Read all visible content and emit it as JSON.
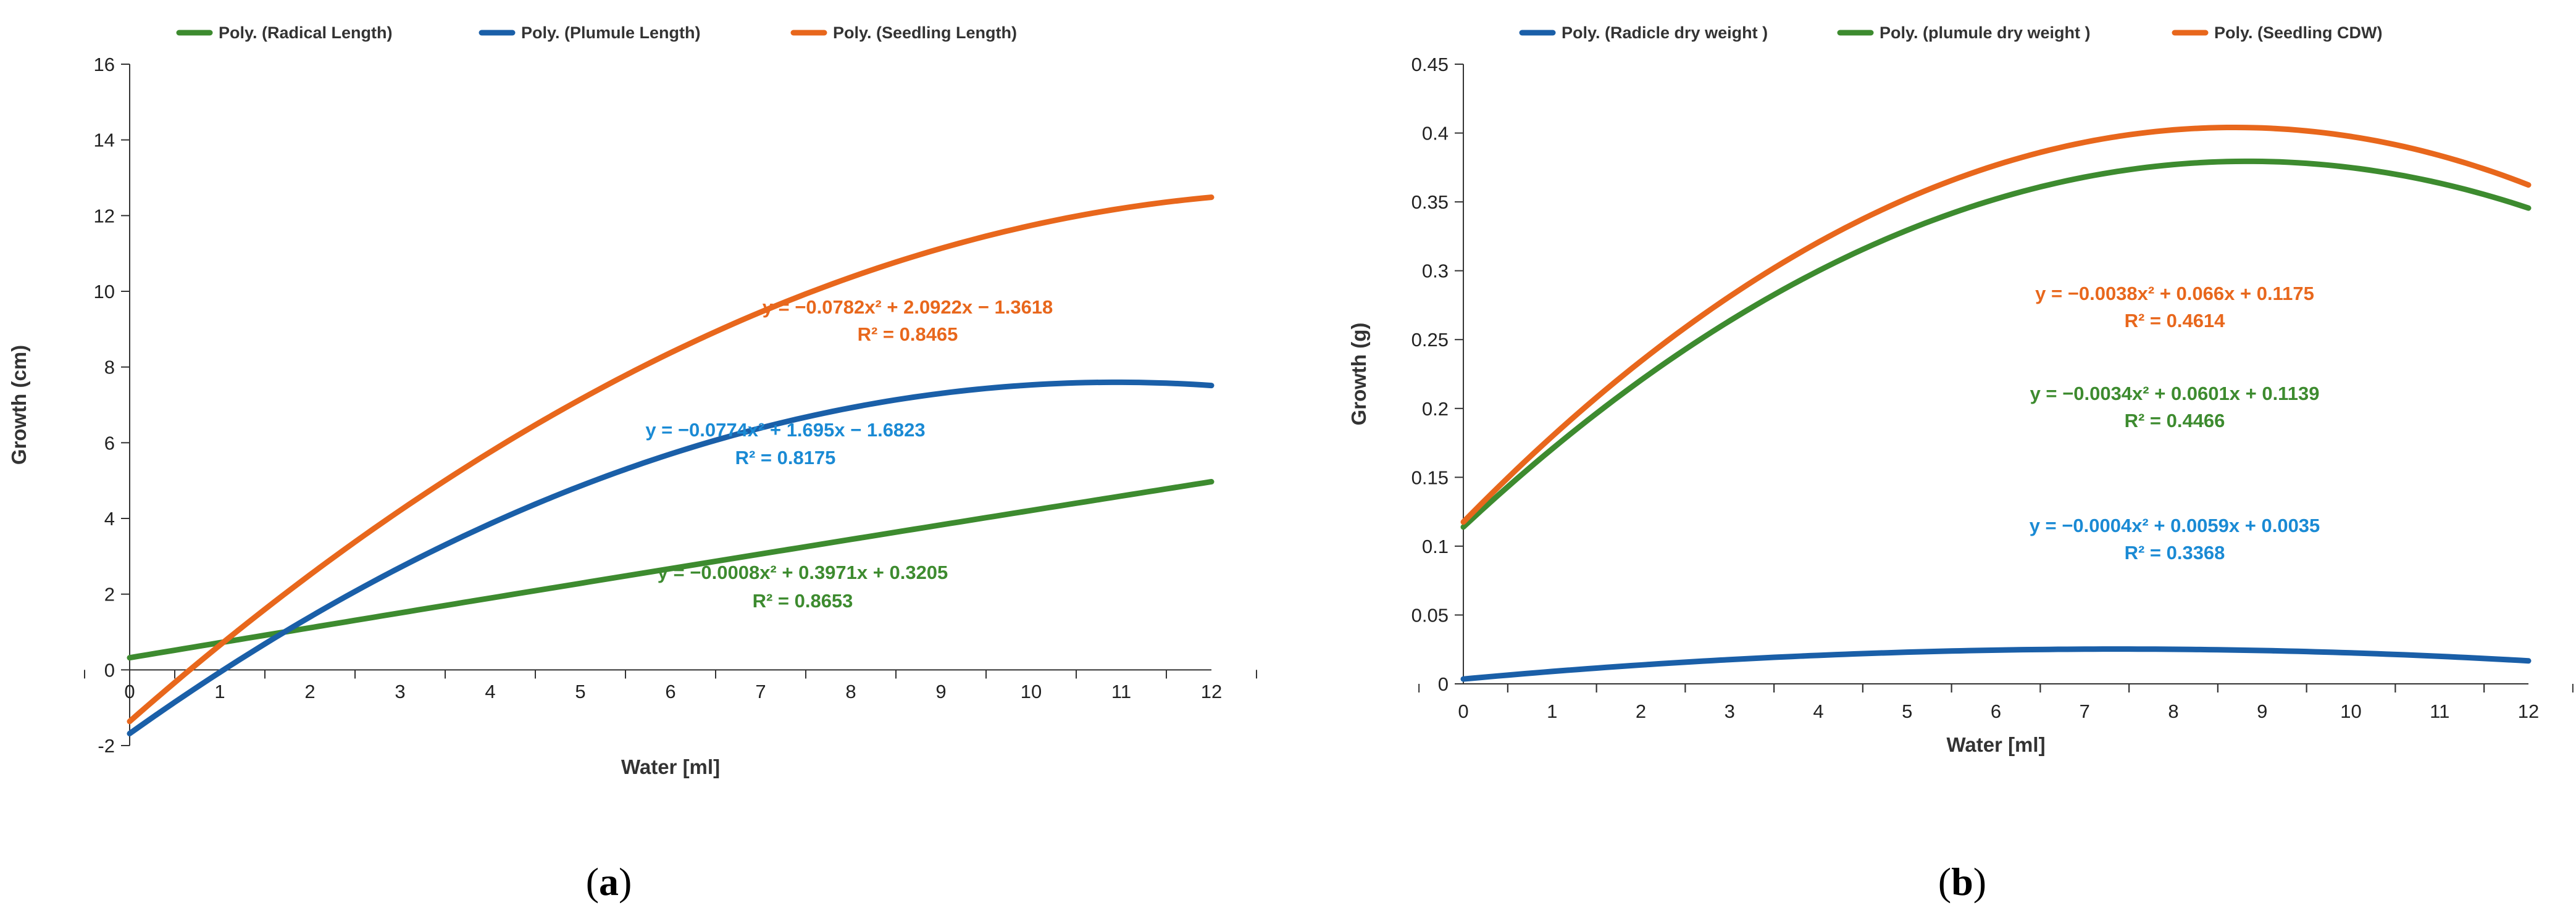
{
  "chart_data": [
    {
      "panel": "(a)",
      "panel_letter": "a",
      "type": "line",
      "title": "",
      "xlabel": "Water [ml]",
      "ylabel": "Growth (cm)",
      "xlim": [
        0,
        12
      ],
      "ylim": [
        -2,
        16
      ],
      "xticks": [
        "0",
        "1",
        "2",
        "3",
        "4",
        "5",
        "6",
        "7",
        "8",
        "9",
        "10",
        "11",
        "12"
      ],
      "yticks": [
        "-2",
        "0",
        "2",
        "4",
        "6",
        "8",
        "10",
        "12",
        "14",
        "16"
      ],
      "grid": false,
      "legend_position": "top",
      "series": [
        {
          "name": "Poly. (Radical Length)",
          "color": "#3d8b2f",
          "coefficients": [
            -0.0008,
            0.3971,
            0.3205
          ],
          "x": [
            0,
            12
          ],
          "equation": "y = −0.0008x² + 0.3971x + 0.3205",
          "r2": "R² = 0.8653",
          "eq_color": "#3d8b2f"
        },
        {
          "name": "Poly. (Plumule Length)",
          "color": "#1a5fa8",
          "coefficients": [
            -0.0774,
            1.695,
            -1.6823
          ],
          "x": [
            0,
            12
          ],
          "equation": "y = −0.0774x² + 1.695x − 1.6823",
          "r2": "R² = 0.8175",
          "eq_color": "#1a8ad4"
        },
        {
          "name": "Poly. (Seedling Length)",
          "color": "#e8671c",
          "coefficients": [
            -0.0782,
            2.0922,
            -1.3618
          ],
          "x": [
            0,
            12
          ],
          "equation": "y = −0.0782x² + 2.0922x − 1.3618",
          "r2": "R² = 0.8465",
          "eq_color": "#e8671c"
        }
      ]
    },
    {
      "panel": "(b)",
      "panel_letter": "b",
      "type": "line",
      "title": "",
      "xlabel": "Water [ml]",
      "ylabel": "Growth (g)",
      "xlim": [
        0,
        12
      ],
      "ylim": [
        0,
        0.45
      ],
      "xticks": [
        "0",
        "1",
        "2",
        "3",
        "4",
        "5",
        "6",
        "7",
        "8",
        "9",
        "10",
        "11",
        "12"
      ],
      "yticks": [
        "0",
        "0.05",
        "0.1",
        "0.15",
        "0.2",
        "0.25",
        "0.3",
        "0.35",
        "0.4",
        "0.45"
      ],
      "grid": false,
      "legend_position": "top",
      "series": [
        {
          "name": "Poly. (Radicle dry weight )",
          "color": "#1a5fa8",
          "coefficients": [
            -0.0004,
            0.0059,
            0.0035
          ],
          "x": [
            0,
            12
          ],
          "equation": "y = −0.0004x² + 0.0059x + 0.0035",
          "r2": "R² = 0.3368",
          "eq_color": "#1a8ad4"
        },
        {
          "name": "Poly. (plumule dry weight )",
          "color": "#3d8b2f",
          "coefficients": [
            -0.0034,
            0.0601,
            0.1139
          ],
          "x": [
            0,
            12
          ],
          "equation": "y = −0.0034x² + 0.0601x + 0.1139",
          "r2": "R² = 0.4466",
          "eq_color": "#3d8b2f"
        },
        {
          "name": "Poly. (Seedling CDW)",
          "color": "#e8671c",
          "coefficients": [
            -0.0038,
            0.066,
            0.1175
          ],
          "x": [
            0,
            12
          ],
          "equation": "y = −0.0038x² + 0.066x + 0.1175",
          "r2": "R² = 0.4614",
          "eq_color": "#e8671c"
        }
      ]
    }
  ]
}
